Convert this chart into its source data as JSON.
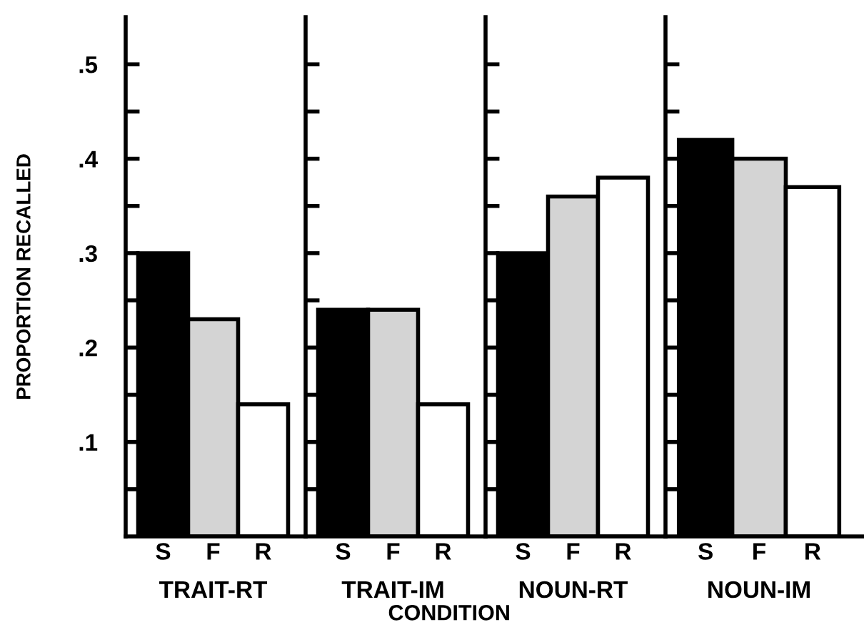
{
  "chart_data": [
    {
      "type": "bar",
      "xlabel": "TRAIT-RT",
      "ylabel": "PROPORTION RECALLED",
      "categories": [
        "S",
        "F",
        "R"
      ],
      "values": [
        0.3,
        0.23,
        0.14
      ],
      "colors": [
        "#000000",
        "#d4d4d4",
        "#ffffff"
      ],
      "ylim": [
        0,
        0.55
      ],
      "yticks": [
        {
          "value": 0.05,
          "label": null
        },
        {
          "value": 0.1,
          "label": ".1"
        },
        {
          "value": 0.15,
          "label": null
        },
        {
          "value": 0.2,
          "label": ".2"
        },
        {
          "value": 0.25,
          "label": null
        },
        {
          "value": 0.3,
          "label": ".3"
        },
        {
          "value": 0.35,
          "label": null
        },
        {
          "value": 0.4,
          "label": ".4"
        },
        {
          "value": 0.45,
          "label": null
        },
        {
          "value": 0.5,
          "label": ".5"
        }
      ],
      "grid": false,
      "annotations": [
        "CONDITION"
      ]
    },
    {
      "type": "bar",
      "xlabel": "TRAIT-IM",
      "categories": [
        "S",
        "F",
        "R"
      ],
      "values": [
        0.24,
        0.24,
        0.14
      ],
      "colors": [
        "#000000",
        "#d4d4d4",
        "#ffffff"
      ],
      "ylim": [
        0,
        0.55
      ],
      "yticks": [
        {
          "value": 0.05,
          "label": null
        },
        {
          "value": 0.1,
          "label": null
        },
        {
          "value": 0.15,
          "label": null
        },
        {
          "value": 0.2,
          "label": null
        },
        {
          "value": 0.25,
          "label": null
        },
        {
          "value": 0.3,
          "label": null
        },
        {
          "value": 0.35,
          "label": null
        },
        {
          "value": 0.4,
          "label": null
        },
        {
          "value": 0.45,
          "label": null
        },
        {
          "value": 0.5,
          "label": null
        }
      ],
      "grid": false,
      "tick_labels": "x"
    },
    {
      "type": "bar",
      "xlabel": "NOUN-RT",
      "categories": [
        "S",
        "F",
        "R"
      ],
      "values": [
        0.3,
        0.36,
        0.38
      ],
      "colors": [
        "#000000",
        "#d4d4d4",
        "#ffffff"
      ],
      "ylim": [
        0,
        0.55
      ],
      "yticks": [
        {
          "value": 0.05,
          "label": null
        },
        {
          "value": 0.1,
          "label": null
        },
        {
          "value": 0.15,
          "label": null
        },
        {
          "value": 0.2,
          "label": null
        },
        {
          "value": 0.25,
          "label": null
        },
        {
          "value": 0.3,
          "label": null
        },
        {
          "value": 0.35,
          "label": null
        },
        {
          "value": 0.4,
          "label": null
        },
        {
          "value": 0.45,
          "label": null
        },
        {
          "value": 0.5,
          "label": null
        }
      ],
      "grid": false,
      "tick_labels": "x"
    },
    {
      "type": "bar",
      "xlabel": "NOUN-IM",
      "categories": [
        "S",
        "F",
        "R"
      ],
      "values": [
        0.42,
        0.4,
        0.37
      ],
      "colors": [
        "#000000",
        "#d4d4d4",
        "#ffffff"
      ],
      "ylim": [
        0,
        0.55
      ],
      "yticks": [
        {
          "value": 0.05,
          "label": null
        },
        {
          "value": 0.1,
          "label": null
        },
        {
          "value": 0.15,
          "label": null
        },
        {
          "value": 0.2,
          "label": null
        },
        {
          "value": 0.25,
          "label": null
        },
        {
          "value": 0.3,
          "label": null
        },
        {
          "value": 0.35,
          "label": null
        },
        {
          "value": 0.4,
          "label": null
        },
        {
          "value": 0.45,
          "label": null
        },
        {
          "value": 0.5,
          "label": null
        }
      ],
      "grid": false,
      "tick_labels": "x"
    }
  ]
}
